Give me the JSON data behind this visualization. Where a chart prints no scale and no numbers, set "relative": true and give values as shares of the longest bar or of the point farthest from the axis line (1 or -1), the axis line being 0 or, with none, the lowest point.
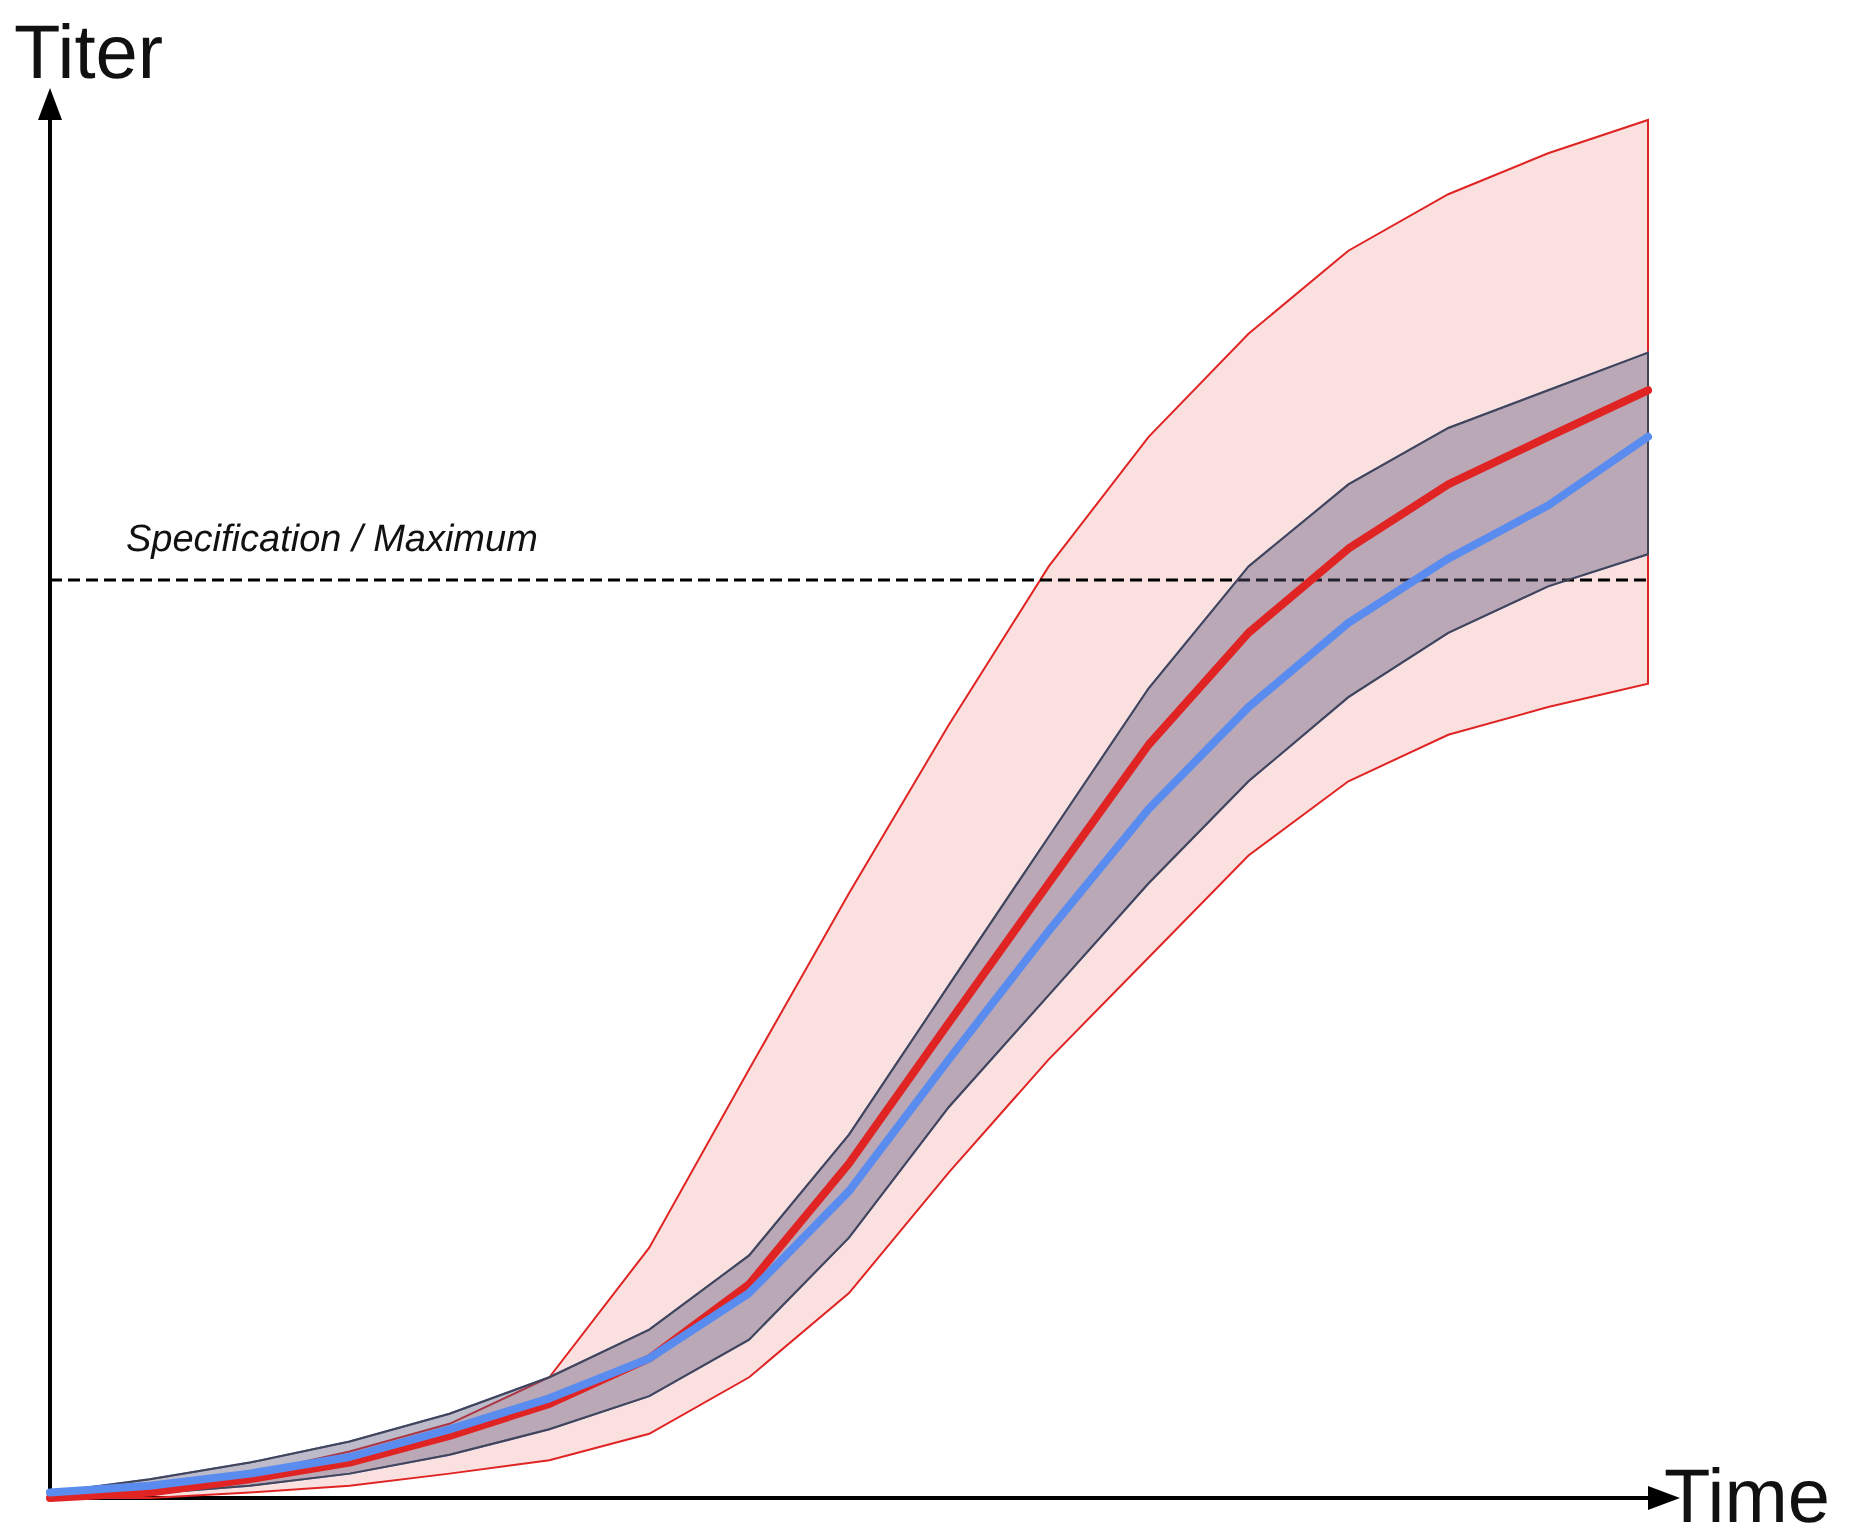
{
  "chart_data": {
    "type": "line",
    "relative": true,
    "xlabel": "Time",
    "ylabel": "Titer",
    "categories": [
      null,
      null,
      null,
      null,
      null,
      null,
      null,
      null,
      null,
      null,
      null,
      null,
      null,
      null,
      null,
      null,
      null
    ],
    "series": [
      {
        "color": "#e02424",
        "values": [
          0,
          0.005,
          0.017,
          0.032,
          0.056,
          0.085,
          0.126,
          0.193,
          0.302,
          0.429,
          0.555,
          0.68,
          0.781,
          0.857,
          0.915,
          0.958,
          1
        ],
        "lower": [
          0,
          0,
          0.005,
          0.011,
          0.022,
          0.034,
          0.058,
          0.109,
          0.185,
          0.294,
          0.396,
          0.488,
          0.58,
          0.647,
          0.689,
          0.714,
          0.735
        ],
        "upper": [
          0,
          0.009,
          0.022,
          0.042,
          0.067,
          0.109,
          0.226,
          0.387,
          0.546,
          0.698,
          0.841,
          0.958,
          1.051,
          1.126,
          1.177,
          1.214,
          1.244
        ]
      },
      {
        "color": "#5a8cf0",
        "values": [
          0.005,
          0.011,
          0.022,
          0.037,
          0.062,
          0.09,
          0.126,
          0.185,
          0.277,
          0.396,
          0.512,
          0.622,
          0.714,
          0.79,
          0.848,
          0.896,
          0.958
        ],
        "lower": [
          0,
          0.004,
          0.011,
          0.022,
          0.039,
          0.062,
          0.092,
          0.143,
          0.235,
          0.353,
          0.454,
          0.555,
          0.647,
          0.723,
          0.781,
          0.823,
          0.852
        ],
        "upper": [
          0.005,
          0.017,
          0.032,
          0.051,
          0.076,
          0.109,
          0.152,
          0.219,
          0.328,
          0.463,
          0.597,
          0.731,
          0.841,
          0.915,
          0.966,
          1,
          1.034
        ]
      }
    ],
    "ref_lines": [
      {
        "axis": "y",
        "value": 0.831,
        "label": "Specification / Maximum",
        "line_style": "dashed",
        "color": "#000000"
      }
    ],
    "grid": false,
    "marker": "none"
  }
}
